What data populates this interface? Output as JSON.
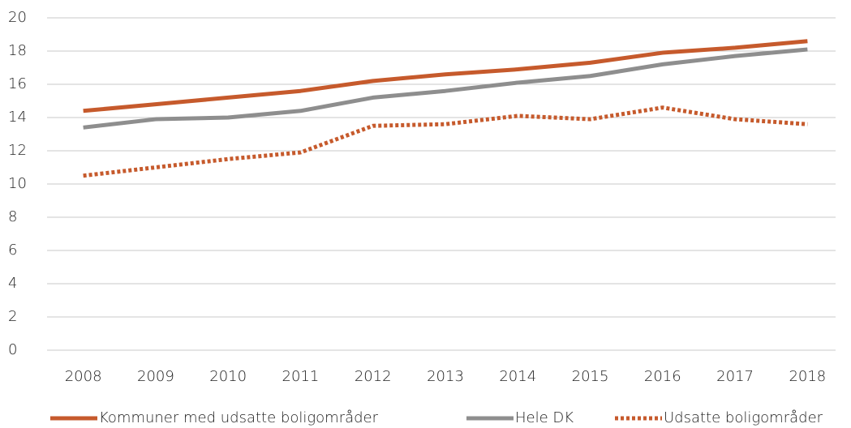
{
  "chart_data": {
    "type": "line",
    "categories": [
      "2008",
      "2009",
      "2010",
      "2011",
      "2012",
      "2013",
      "2014",
      "2015",
      "2016",
      "2017",
      "2018"
    ],
    "series": [
      {
        "name": "Kommuner med udsatte boligområder",
        "color": "#c65a2c",
        "line_style": "solid",
        "values": [
          14.4,
          14.8,
          15.2,
          15.6,
          16.2,
          16.6,
          16.9,
          17.3,
          17.9,
          18.2,
          18.6
        ]
      },
      {
        "name": "Hele DK",
        "color": "#8e8e8e",
        "line_style": "solid",
        "values": [
          13.4,
          13.9,
          14.0,
          14.4,
          15.2,
          15.6,
          16.1,
          16.5,
          17.2,
          17.7,
          18.1
        ]
      },
      {
        "name": "Udsatte boligområder",
        "color": "#c65a2c",
        "line_style": "dotted",
        "values": [
          10.5,
          11.0,
          11.5,
          11.9,
          13.5,
          13.6,
          14.1,
          13.9,
          14.6,
          13.9,
          13.6
        ]
      }
    ],
    "ylim": [
      0,
      20
    ],
    "yticks": [
      0,
      2,
      4,
      6,
      8,
      10,
      12,
      14,
      16,
      18,
      20
    ],
    "grid": true,
    "legend": "bottom"
  }
}
